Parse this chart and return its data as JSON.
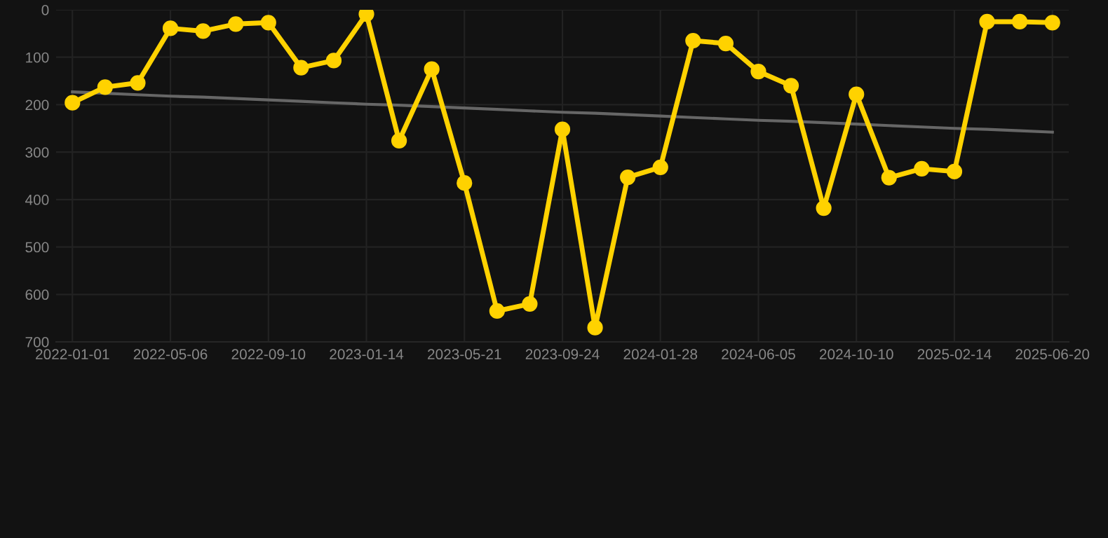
{
  "chart_data": {
    "type": "line",
    "categories": [
      "2022-01-01",
      null,
      null,
      "2022-05-06",
      null,
      null,
      "2022-09-10",
      null,
      null,
      "2023-01-14",
      null,
      null,
      "2023-05-21",
      null,
      null,
      "2023-09-24",
      null,
      null,
      "2024-01-28",
      null,
      null,
      "2024-06-05",
      null,
      null,
      "2024-10-10",
      null,
      null,
      "2025-02-14",
      null,
      null,
      "2025-06-20"
    ],
    "series": [
      {
        "color": "#ffd200",
        "marker": "circle",
        "values": [
          196,
          163,
          154,
          39,
          45,
          30,
          27,
          122,
          107,
          9,
          276,
          125,
          365,
          635,
          620,
          252,
          670,
          353,
          332,
          65,
          71,
          130,
          160,
          418,
          178,
          354,
          335,
          341,
          25,
          25,
          27
        ]
      },
      {
        "color": "#666666",
        "marker": "none",
        "values": [
          173,
          176,
          179,
          182,
          184,
          187,
          190,
          193,
          196,
          199,
          201,
          204,
          207,
          210,
          213,
          216,
          218,
          221,
          224,
          227,
          230,
          233,
          235,
          238,
          241,
          244,
          247,
          250,
          252,
          255,
          258
        ]
      }
    ],
    "ylim": [
      700,
      0
    ],
    "yticks": [
      0,
      100,
      200,
      300,
      400,
      500,
      600,
      700
    ],
    "grid": true
  }
}
